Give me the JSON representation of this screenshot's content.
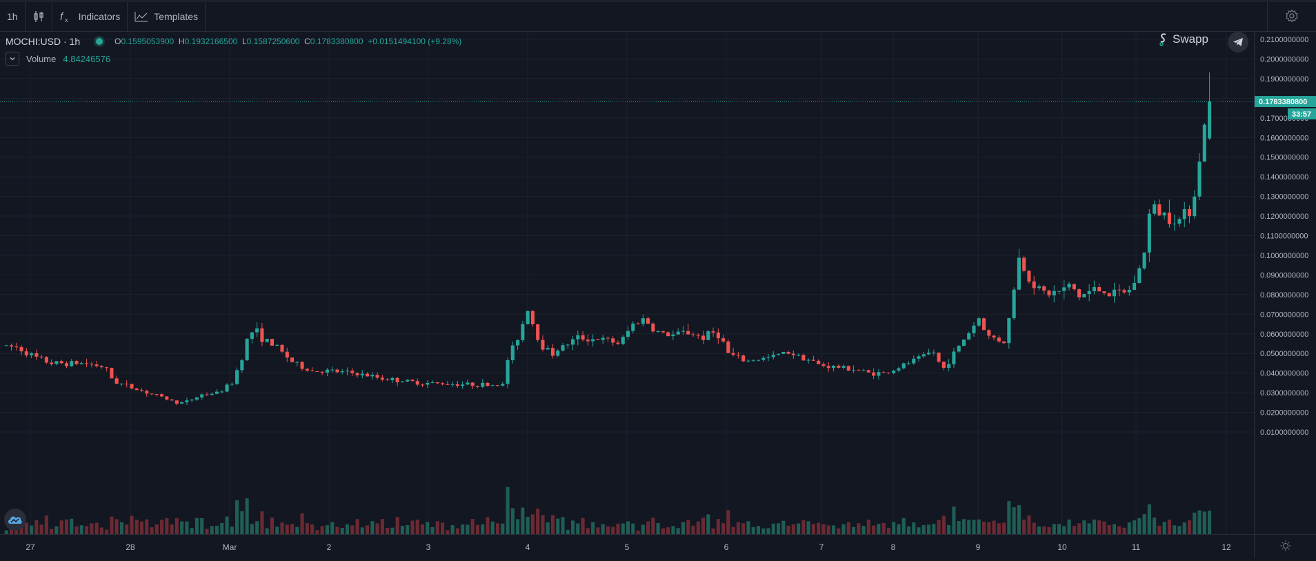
{
  "toolbar": {
    "interval": "1h",
    "indicators_label": "Indicators",
    "templates_label": "Templates",
    "icons": [
      "candles-icon",
      "fx-icon",
      "templates-icon",
      "gear-icon"
    ]
  },
  "legend": {
    "symbol": "MOCHI:USD · 1h",
    "o_label": "O",
    "o_value": "0.1595053900",
    "h_label": "H",
    "h_value": "0.1932166500",
    "l_label": "L",
    "l_value": "0.1587250600",
    "c_label": "C",
    "c_value": "0.1783380800",
    "change": "+0.0151494100 (+9.28%)",
    "volume_label": "Volume",
    "volume_value": "4.84246576"
  },
  "brand": {
    "name": "Swapp"
  },
  "last_price": {
    "value": "0.1783380800",
    "countdown": "33:57"
  },
  "colors": {
    "background": "#131722",
    "up": "#26a69a",
    "down": "#ef5350",
    "grid": "#1e222d",
    "axis_text": "#b2b5be"
  },
  "chart_data": {
    "type": "candlestick",
    "symbol": "MOCHI:USD",
    "interval": "1h",
    "y_ticks": [
      "0.2100000000",
      "0.2000000000",
      "0.1900000000",
      "0.1800000000",
      "0.1700000000",
      "0.1600000000",
      "0.1500000000",
      "0.1400000000",
      "0.1300000000",
      "0.1200000000",
      "0.1100000000",
      "0.1000000000",
      "0.0900000000",
      "0.0800000000",
      "0.0700000000",
      "0.0600000000",
      "0.0500000000",
      "0.0400000000",
      "0.0300000000",
      "0.0200000000",
      "0.0100000000"
    ],
    "ylim": [
      0.0,
      0.21
    ],
    "x_ticks": [
      "27",
      "28",
      "Mar",
      "2",
      "3",
      "4",
      "5",
      "6",
      "7",
      "8",
      "9",
      "10",
      "11",
      "12"
    ],
    "hours_total": 375,
    "last_price": 0.17833808,
    "keypoints": [
      [
        0,
        0.054
      ],
      [
        10,
        0.053
      ],
      [
        20,
        0.048
      ],
      [
        30,
        0.045
      ],
      [
        50,
        0.045
      ],
      [
        62,
        0.043
      ],
      [
        67,
        0.036
      ],
      [
        80,
        0.032
      ],
      [
        95,
        0.028
      ],
      [
        105,
        0.025
      ],
      [
        110,
        0.025
      ],
      [
        120,
        0.029
      ],
      [
        130,
        0.03
      ],
      [
        138,
        0.035
      ],
      [
        144,
        0.048
      ],
      [
        148,
        0.06
      ],
      [
        152,
        0.062
      ],
      [
        157,
        0.057
      ],
      [
        165,
        0.053
      ],
      [
        175,
        0.045
      ],
      [
        185,
        0.041
      ],
      [
        195,
        0.041
      ],
      [
        210,
        0.04
      ],
      [
        230,
        0.037
      ],
      [
        250,
        0.035
      ],
      [
        290,
        0.034
      ],
      [
        300,
        0.034
      ],
      [
        302,
        0.045
      ],
      [
        310,
        0.06
      ],
      [
        315,
        0.073
      ],
      [
        322,
        0.055
      ],
      [
        330,
        0.05
      ],
      [
        335,
        0.053
      ],
      [
        345,
        0.058
      ],
      [
        360,
        0.057
      ],
      [
        370,
        0.055
      ],
      [
        378,
        0.065
      ],
      [
        385,
        0.068
      ],
      [
        390,
        0.062
      ],
      [
        400,
        0.059
      ],
      [
        410,
        0.061
      ],
      [
        420,
        0.058
      ],
      [
        425,
        0.061
      ],
      [
        430,
        0.059
      ],
      [
        435,
        0.05
      ],
      [
        445,
        0.046
      ],
      [
        460,
        0.048
      ],
      [
        470,
        0.051
      ],
      [
        480,
        0.048
      ],
      [
        490,
        0.044
      ],
      [
        500,
        0.043
      ],
      [
        510,
        0.042
      ],
      [
        520,
        0.04
      ],
      [
        530,
        0.04
      ],
      [
        540,
        0.044
      ],
      [
        555,
        0.05
      ],
      [
        560,
        0.051
      ],
      [
        562,
        0.04
      ],
      [
        570,
        0.05
      ],
      [
        580,
        0.062
      ],
      [
        585,
        0.068
      ],
      [
        590,
        0.059
      ],
      [
        600,
        0.056
      ],
      [
        605,
        0.075
      ],
      [
        608,
        0.1
      ],
      [
        615,
        0.088
      ],
      [
        625,
        0.08
      ],
      [
        635,
        0.082
      ],
      [
        640,
        0.085
      ],
      [
        645,
        0.079
      ],
      [
        655,
        0.083
      ],
      [
        665,
        0.08
      ],
      [
        675,
        0.082
      ],
      [
        680,
        0.09
      ],
      [
        685,
        0.105
      ],
      [
        688,
        0.128
      ],
      [
        692,
        0.122
      ],
      [
        700,
        0.12
      ],
      [
        705,
        0.118
      ],
      [
        712,
        0.125
      ],
      [
        716,
        0.14
      ],
      [
        720,
        0.168
      ],
      [
        724,
        0.178
      ]
    ],
    "hours_model": {
      "h_per_day": 24,
      "first_day_offset_hours": 0
    },
    "volume": {
      "max_display": 0.02
    }
  }
}
